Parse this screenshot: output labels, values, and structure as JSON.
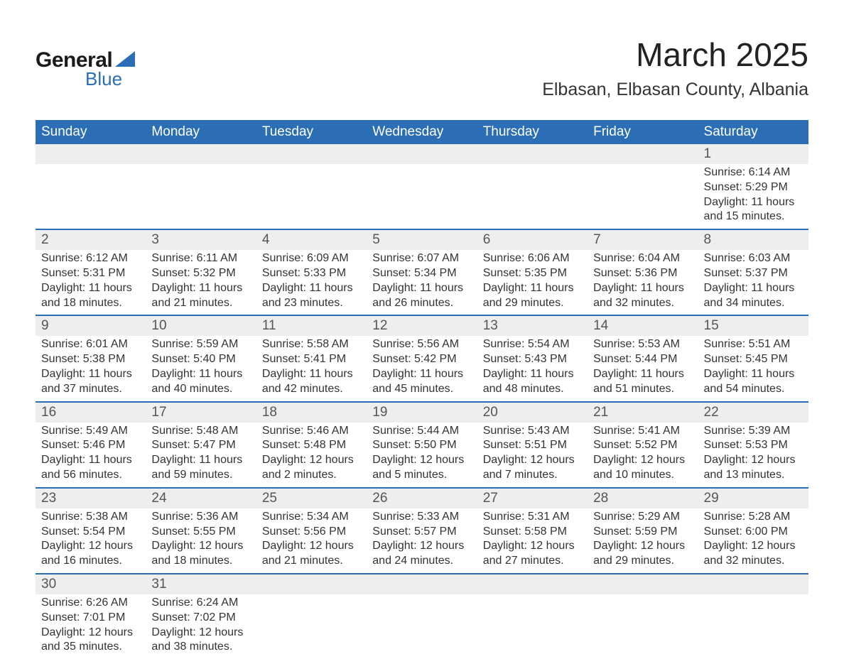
{
  "logo": {
    "text_top": "General",
    "text_bottom": "Blue"
  },
  "title": "March 2025",
  "location": "Elbasan, Elbasan County, Albania",
  "colors": {
    "header_bg": "#2b6eb5",
    "header_text": "#ffffff",
    "daynum_bg": "#eeeeee",
    "row_divider": "#2b6eb5",
    "body_text": "#333333",
    "page_bg": "#ffffff"
  },
  "day_headers": [
    "Sunday",
    "Monday",
    "Tuesday",
    "Wednesday",
    "Thursday",
    "Friday",
    "Saturday"
  ],
  "weeks": [
    [
      null,
      null,
      null,
      null,
      null,
      null,
      {
        "n": "1",
        "sr": "6:14 AM",
        "ss": "5:29 PM",
        "dl": "11 hours and 15 minutes."
      }
    ],
    [
      {
        "n": "2",
        "sr": "6:12 AM",
        "ss": "5:31 PM",
        "dl": "11 hours and 18 minutes."
      },
      {
        "n": "3",
        "sr": "6:11 AM",
        "ss": "5:32 PM",
        "dl": "11 hours and 21 minutes."
      },
      {
        "n": "4",
        "sr": "6:09 AM",
        "ss": "5:33 PM",
        "dl": "11 hours and 23 minutes."
      },
      {
        "n": "5",
        "sr": "6:07 AM",
        "ss": "5:34 PM",
        "dl": "11 hours and 26 minutes."
      },
      {
        "n": "6",
        "sr": "6:06 AM",
        "ss": "5:35 PM",
        "dl": "11 hours and 29 minutes."
      },
      {
        "n": "7",
        "sr": "6:04 AM",
        "ss": "5:36 PM",
        "dl": "11 hours and 32 minutes."
      },
      {
        "n": "8",
        "sr": "6:03 AM",
        "ss": "5:37 PM",
        "dl": "11 hours and 34 minutes."
      }
    ],
    [
      {
        "n": "9",
        "sr": "6:01 AM",
        "ss": "5:38 PM",
        "dl": "11 hours and 37 minutes."
      },
      {
        "n": "10",
        "sr": "5:59 AM",
        "ss": "5:40 PM",
        "dl": "11 hours and 40 minutes."
      },
      {
        "n": "11",
        "sr": "5:58 AM",
        "ss": "5:41 PM",
        "dl": "11 hours and 42 minutes."
      },
      {
        "n": "12",
        "sr": "5:56 AM",
        "ss": "5:42 PM",
        "dl": "11 hours and 45 minutes."
      },
      {
        "n": "13",
        "sr": "5:54 AM",
        "ss": "5:43 PM",
        "dl": "11 hours and 48 minutes."
      },
      {
        "n": "14",
        "sr": "5:53 AM",
        "ss": "5:44 PM",
        "dl": "11 hours and 51 minutes."
      },
      {
        "n": "15",
        "sr": "5:51 AM",
        "ss": "5:45 PM",
        "dl": "11 hours and 54 minutes."
      }
    ],
    [
      {
        "n": "16",
        "sr": "5:49 AM",
        "ss": "5:46 PM",
        "dl": "11 hours and 56 minutes."
      },
      {
        "n": "17",
        "sr": "5:48 AM",
        "ss": "5:47 PM",
        "dl": "11 hours and 59 minutes."
      },
      {
        "n": "18",
        "sr": "5:46 AM",
        "ss": "5:48 PM",
        "dl": "12 hours and 2 minutes."
      },
      {
        "n": "19",
        "sr": "5:44 AM",
        "ss": "5:50 PM",
        "dl": "12 hours and 5 minutes."
      },
      {
        "n": "20",
        "sr": "5:43 AM",
        "ss": "5:51 PM",
        "dl": "12 hours and 7 minutes."
      },
      {
        "n": "21",
        "sr": "5:41 AM",
        "ss": "5:52 PM",
        "dl": "12 hours and 10 minutes."
      },
      {
        "n": "22",
        "sr": "5:39 AM",
        "ss": "5:53 PM",
        "dl": "12 hours and 13 minutes."
      }
    ],
    [
      {
        "n": "23",
        "sr": "5:38 AM",
        "ss": "5:54 PM",
        "dl": "12 hours and 16 minutes."
      },
      {
        "n": "24",
        "sr": "5:36 AM",
        "ss": "5:55 PM",
        "dl": "12 hours and 18 minutes."
      },
      {
        "n": "25",
        "sr": "5:34 AM",
        "ss": "5:56 PM",
        "dl": "12 hours and 21 minutes."
      },
      {
        "n": "26",
        "sr": "5:33 AM",
        "ss": "5:57 PM",
        "dl": "12 hours and 24 minutes."
      },
      {
        "n": "27",
        "sr": "5:31 AM",
        "ss": "5:58 PM",
        "dl": "12 hours and 27 minutes."
      },
      {
        "n": "28",
        "sr": "5:29 AM",
        "ss": "5:59 PM",
        "dl": "12 hours and 29 minutes."
      },
      {
        "n": "29",
        "sr": "5:28 AM",
        "ss": "6:00 PM",
        "dl": "12 hours and 32 minutes."
      }
    ],
    [
      {
        "n": "30",
        "sr": "6:26 AM",
        "ss": "7:01 PM",
        "dl": "12 hours and 35 minutes."
      },
      {
        "n": "31",
        "sr": "6:24 AM",
        "ss": "7:02 PM",
        "dl": "12 hours and 38 minutes."
      },
      null,
      null,
      null,
      null,
      null
    ]
  ],
  "labels": {
    "sunrise": "Sunrise:",
    "sunset": "Sunset:",
    "daylight": "Daylight:"
  }
}
